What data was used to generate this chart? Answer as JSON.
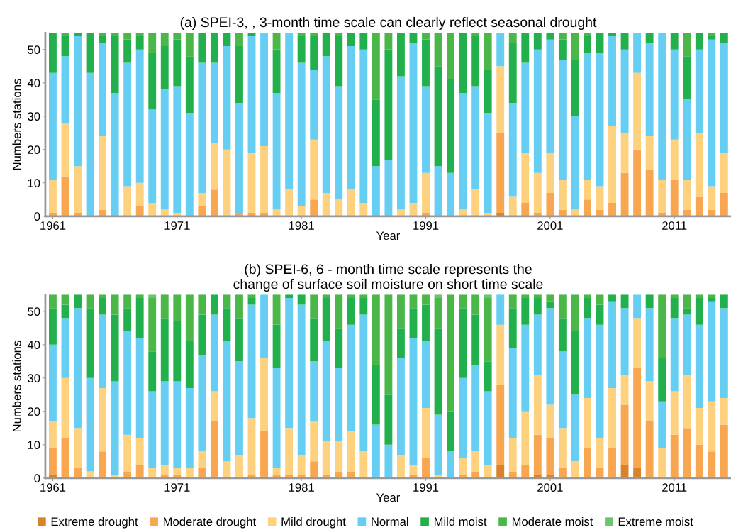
{
  "chart_data": [
    {
      "type": "bar",
      "stacked": true,
      "title": "(a) SPEI-3, , 3-month time scale can clearly reflect seasonal drought",
      "xlabel": "Year",
      "ylabel": "Numbers stations",
      "x": [
        1961,
        1962,
        1963,
        1964,
        1965,
        1966,
        1967,
        1968,
        1969,
        1970,
        1971,
        1972,
        1973,
        1974,
        1975,
        1976,
        1977,
        1978,
        1979,
        1980,
        1981,
        1982,
        1983,
        1984,
        1985,
        1986,
        1987,
        1988,
        1989,
        1990,
        1991,
        1992,
        1993,
        1994,
        1995,
        1996,
        1997,
        1998,
        1999,
        2000,
        2001,
        2002,
        2003,
        2004,
        2005,
        2006,
        2007,
        2008,
        2009,
        2010,
        2011,
        2012,
        2013,
        2014,
        2015
      ],
      "xlim": [
        1960.4,
        2015.55
      ],
      "xticks": [
        1961,
        1971,
        1981,
        1991,
        2001,
        2011
      ],
      "ylim": [
        0,
        55
      ],
      "yticks": [
        0,
        10,
        20,
        30,
        40,
        50
      ],
      "grid": false,
      "legend": false,
      "series": [
        {
          "color": "#d9822b",
          "values": [
            0,
            0,
            0,
            0,
            0,
            0,
            0,
            0,
            0,
            0,
            0,
            0,
            0,
            0,
            0,
            0,
            0,
            0,
            0,
            0,
            0,
            0,
            0,
            0,
            0,
            0,
            0,
            0,
            0,
            0,
            0,
            0,
            0,
            0,
            0,
            0,
            1,
            0,
            0,
            0,
            0,
            0,
            0,
            0,
            0,
            0,
            0,
            0,
            0,
            0,
            0,
            0,
            0,
            0,
            0
          ]
        },
        {
          "color": "#f8a64f",
          "values": [
            1,
            12,
            1,
            0,
            2,
            0,
            0,
            3,
            0,
            0,
            0,
            0,
            3,
            8,
            0,
            1,
            1,
            1,
            0,
            0,
            0,
            5,
            0,
            0,
            0,
            0,
            0,
            0,
            0,
            0,
            1,
            0,
            0,
            0,
            0,
            0,
            24,
            0,
            4,
            1,
            7,
            2,
            0,
            5,
            2,
            4,
            13,
            20,
            14,
            1,
            11,
            2,
            6,
            2,
            7
          ]
        },
        {
          "color": "#fed17e",
          "values": [
            10,
            16,
            14,
            0,
            22,
            0,
            9,
            7,
            4,
            2,
            1,
            0,
            4,
            14,
            20,
            0,
            18,
            20,
            2,
            8,
            3,
            18,
            7,
            5,
            8,
            4,
            0,
            0,
            2,
            4,
            12,
            0,
            0,
            2,
            8,
            1,
            20,
            6,
            15,
            12,
            12,
            9,
            2,
            6,
            7,
            23,
            12,
            23,
            10,
            10,
            12,
            9,
            19,
            7,
            12
          ]
        },
        {
          "color": "#66cdf3",
          "values": [
            32,
            20,
            39,
            43,
            28,
            37,
            37,
            40,
            28,
            36,
            38,
            31,
            39,
            24,
            31,
            33,
            35,
            34,
            35,
            47,
            43,
            21,
            41,
            34,
            43,
            46,
            15,
            17,
            40,
            48,
            26,
            15,
            13,
            35,
            31,
            30,
            10,
            28,
            27,
            37,
            34,
            36,
            28,
            38,
            40,
            27,
            25,
            12,
            28,
            44,
            27,
            24,
            25,
            44,
            33
          ]
        },
        {
          "color": "#21b04b",
          "values": [
            12,
            6,
            1,
            12,
            2,
            17,
            7,
            4,
            17,
            13,
            14,
            17,
            9,
            9,
            4,
            17,
            1,
            0,
            13,
            0,
            8,
            10,
            7,
            15,
            4,
            5,
            20,
            33,
            13,
            3,
            14,
            30,
            28,
            18,
            15,
            13,
            0,
            18,
            9,
            5,
            2,
            6,
            17,
            5,
            6,
            1,
            5,
            0,
            3,
            0,
            5,
            13,
            5,
            1,
            3
          ]
        },
        {
          "color": "#4bb748",
          "values": [
            0,
            1,
            0,
            0,
            1,
            1,
            2,
            1,
            6,
            4,
            2,
            7,
            0,
            0,
            0,
            4,
            0,
            0,
            5,
            0,
            1,
            1,
            0,
            1,
            0,
            0,
            20,
            5,
            0,
            0,
            2,
            10,
            14,
            0,
            1,
            11,
            0,
            3,
            0,
            0,
            0,
            2,
            8,
            1,
            0,
            0,
            0,
            0,
            0,
            0,
            0,
            7,
            0,
            1,
            0
          ]
        },
        {
          "color": "#6cc46c",
          "values": [
            0,
            0,
            0,
            0,
            0,
            0,
            0,
            0,
            0,
            0,
            0,
            0,
            0,
            0,
            0,
            0,
            0,
            0,
            0,
            0,
            0,
            0,
            0,
            0,
            0,
            0,
            0,
            0,
            0,
            0,
            0,
            0,
            0,
            0,
            0,
            0,
            0,
            0,
            0,
            0,
            0,
            0,
            0,
            0,
            0,
            0,
            0,
            0,
            0,
            0,
            0,
            0,
            0,
            0,
            0
          ]
        }
      ]
    },
    {
      "type": "bar",
      "stacked": true,
      "title": "(b) SPEI-6, 6 - month time scale represents the\nchange of surface soil moisture on short time scale",
      "xlabel": "Year",
      "ylabel": "Numbers stations",
      "x": [
        1961,
        1962,
        1963,
        1964,
        1965,
        1966,
        1967,
        1968,
        1969,
        1970,
        1971,
        1972,
        1973,
        1974,
        1975,
        1976,
        1977,
        1978,
        1979,
        1980,
        1981,
        1982,
        1983,
        1984,
        1985,
        1986,
        1987,
        1988,
        1989,
        1990,
        1991,
        1992,
        1993,
        1994,
        1995,
        1996,
        1997,
        1998,
        1999,
        2000,
        2001,
        2002,
        2003,
        2004,
        2005,
        2006,
        2007,
        2008,
        2009,
        2010,
        2011,
        2012,
        2013,
        2014,
        2015
      ],
      "xlim": [
        1960.4,
        2015.55
      ],
      "xticks": [
        1961,
        1971,
        1981,
        1991,
        2001,
        2011
      ],
      "ylim": [
        0,
        55
      ],
      "yticks": [
        0,
        10,
        20,
        30,
        40,
        50
      ],
      "grid": false,
      "legend": "bottom",
      "series": [
        {
          "name": "Extreme drought",
          "color": "#d9822b",
          "values": [
            1,
            0,
            0,
            0,
            0,
            0,
            0,
            0,
            0,
            0,
            0,
            0,
            0,
            0,
            0,
            0,
            0,
            0,
            0,
            0,
            0,
            0,
            0,
            0,
            0,
            0,
            0,
            0,
            0,
            0,
            0,
            0,
            0,
            0,
            0,
            0,
            4,
            0,
            0,
            1,
            1,
            0,
            0,
            0,
            0,
            0,
            4,
            3,
            0,
            0,
            0,
            0,
            0,
            0,
            0
          ]
        },
        {
          "name": "Moderate drought",
          "color": "#f8a64f",
          "values": [
            8,
            12,
            3,
            0,
            8,
            0,
            2,
            4,
            0,
            1,
            1,
            0,
            3,
            17,
            0,
            0,
            1,
            14,
            1,
            1,
            1,
            5,
            1,
            2,
            2,
            0,
            0,
            0,
            0,
            1,
            6,
            0,
            0,
            1,
            2,
            0,
            24,
            2,
            4,
            12,
            11,
            3,
            0,
            9,
            3,
            9,
            18,
            30,
            17,
            0,
            13,
            15,
            10,
            8,
            16
          ]
        },
        {
          "name": "Mild drought",
          "color": "#fed17e",
          "values": [
            8,
            18,
            12,
            2,
            19,
            1,
            11,
            8,
            3,
            3,
            2,
            3,
            5,
            9,
            5,
            7,
            17,
            22,
            2,
            14,
            6,
            12,
            10,
            9,
            12,
            8,
            0,
            0,
            7,
            3,
            15,
            1,
            0,
            5,
            6,
            4,
            18,
            10,
            16,
            18,
            10,
            12,
            5,
            15,
            9,
            18,
            9,
            15,
            12,
            9,
            13,
            16,
            11,
            15,
            8
          ]
        },
        {
          "name": "Normal",
          "color": "#66cdf3",
          "values": [
            23,
            18,
            36,
            28,
            22,
            28,
            31,
            30,
            23,
            25,
            26,
            24,
            29,
            23,
            36,
            28,
            34,
            19,
            30,
            39,
            45,
            18,
            30,
            22,
            32,
            41,
            16,
            10,
            29,
            38,
            20,
            18,
            8,
            24,
            26,
            22,
            9,
            27,
            26,
            18,
            29,
            23,
            20,
            24,
            34,
            26,
            20,
            7,
            22,
            14,
            22,
            18,
            25,
            30,
            27
          ]
        },
        {
          "name": "Mild moist",
          "color": "#21b04b",
          "values": [
            11,
            4,
            4,
            21,
            5,
            20,
            7,
            12,
            12,
            19,
            18,
            14,
            12,
            6,
            10,
            13,
            2,
            0,
            13,
            1,
            3,
            13,
            13,
            12,
            8,
            5,
            18,
            15,
            9,
            9,
            11,
            26,
            12,
            21,
            15,
            9,
            0,
            12,
            8,
            5,
            2,
            10,
            19,
            6,
            6,
            2,
            4,
            0,
            4,
            13,
            6,
            2,
            8,
            1,
            4
          ]
        },
        {
          "name": "Moderate moist",
          "color": "#4bb748",
          "values": [
            4,
            3,
            0,
            4,
            1,
            6,
            4,
            1,
            16,
            7,
            8,
            14,
            6,
            0,
            4,
            7,
            1,
            0,
            9,
            0,
            0,
            7,
            1,
            10,
            1,
            1,
            21,
            30,
            10,
            4,
            3,
            9,
            35,
            4,
            6,
            19,
            0,
            4,
            1,
            1,
            2,
            7,
            11,
            1,
            3,
            0,
            0,
            0,
            0,
            19,
            1,
            4,
            1,
            1,
            0
          ]
        },
        {
          "name": "Extreme moist",
          "color": "#6cc46c",
          "values": [
            0,
            0,
            0,
            0,
            0,
            0,
            0,
            0,
            1,
            0,
            0,
            0,
            0,
            0,
            0,
            0,
            0,
            0,
            0,
            0,
            0,
            0,
            0,
            0,
            0,
            0,
            0,
            0,
            0,
            0,
            0,
            1,
            0,
            0,
            0,
            1,
            0,
            0,
            0,
            0,
            0,
            0,
            0,
            0,
            0,
            0,
            0,
            0,
            0,
            0,
            0,
            0,
            0,
            0,
            0
          ]
        }
      ]
    }
  ]
}
